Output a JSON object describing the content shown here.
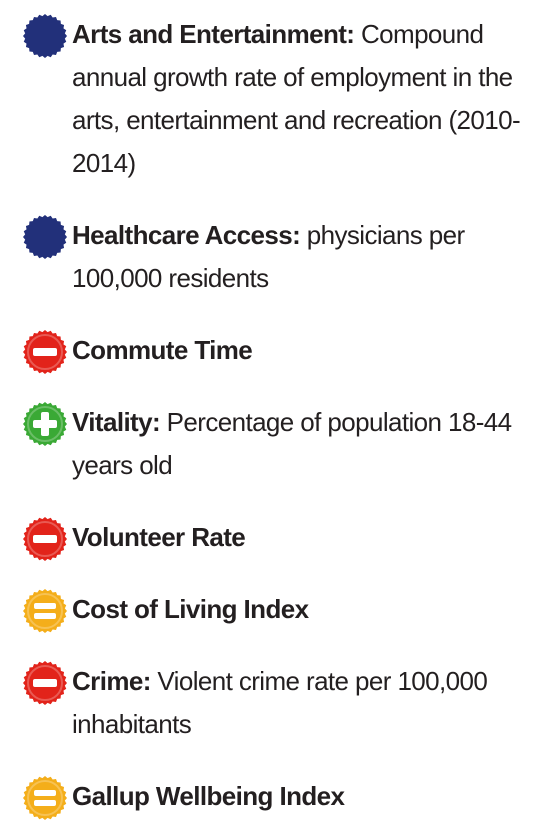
{
  "items": [
    {
      "icon": "neutral",
      "title": "Arts and Entertainment:",
      "text": "Compound annual growth rate of employment in the arts, entertainment and recreation (2010-2014)"
    },
    {
      "icon": "neutral",
      "title": "Healthcare Access:",
      "text": "physicians per 100,000 residents"
    },
    {
      "icon": "minus",
      "title": "Commute Time"
    },
    {
      "icon": "plus",
      "title": "Vitality:",
      "text": "Percentage of population 18-44 years old"
    },
    {
      "icon": "minus",
      "title": "Volunteer Rate"
    },
    {
      "icon": "equal",
      "title": "Cost of Living Index"
    },
    {
      "icon": "minus",
      "title": "Crime:",
      "text": "Violent crime rate per 100,000 inhabitants"
    },
    {
      "icon": "equal",
      "title": "Gallup Wellbeing Index"
    }
  ]
}
